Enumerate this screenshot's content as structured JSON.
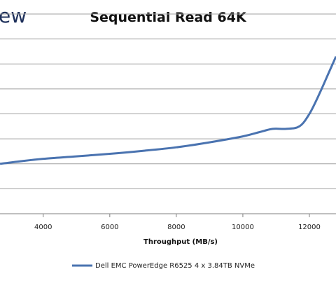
{
  "logo": {
    "text": "ew"
  },
  "colors": {
    "series": "#4a73b0",
    "grid": "#a0a0a0",
    "axis": "#808080"
  },
  "chart_data": {
    "type": "line",
    "title": "Sequential Read 64K",
    "xlabel": "Throughput (MB/s)",
    "ylabel": "",
    "xlim": [
      2700,
      12800
    ],
    "ylim": [
      0,
      8
    ],
    "x_ticks": [
      4000,
      6000,
      8000,
      10000,
      12000
    ],
    "y_gridlines": [
      1,
      2,
      3,
      4,
      5,
      6,
      7,
      8
    ],
    "grid": true,
    "legend": "bottom",
    "series": [
      {
        "name": "Dell EMC PowerEdge R6525 4 x 3.84TB NVMe",
        "x": [
          2700,
          3300,
          4000,
          5000,
          6000,
          7000,
          8000,
          9000,
          10000,
          10500,
          10900,
          11300,
          11700,
          12000,
          12300,
          12600,
          12800
        ],
        "y": [
          2.0,
          2.1,
          2.2,
          2.3,
          2.4,
          2.52,
          2.66,
          2.86,
          3.1,
          3.27,
          3.4,
          3.4,
          3.5,
          4.0,
          4.8,
          5.7,
          6.3
        ]
      }
    ]
  }
}
